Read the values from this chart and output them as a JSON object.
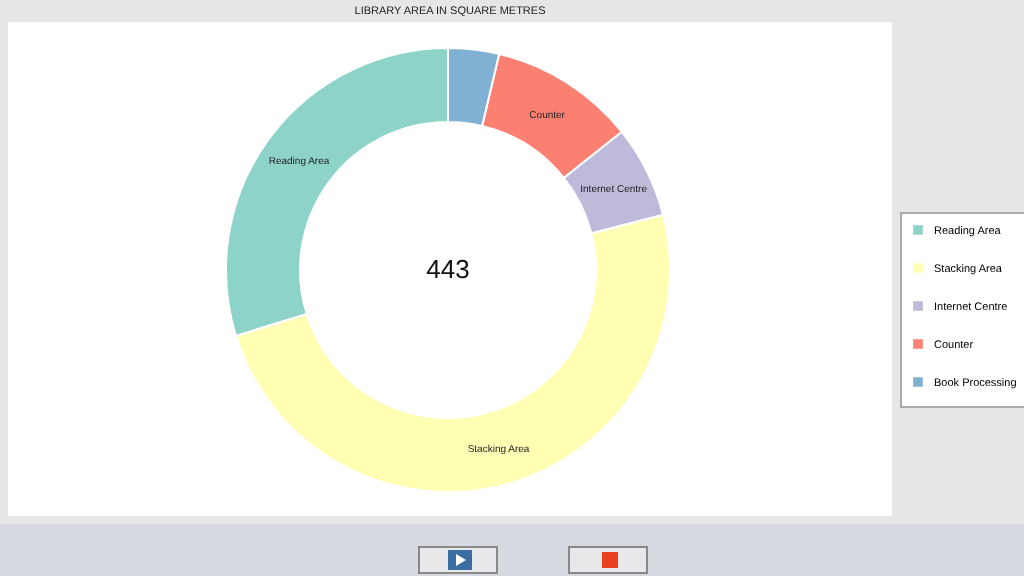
{
  "chart_data": {
    "type": "donut",
    "title": "LIBRARY AREA IN SQUARE METRES",
    "categories": [
      "Reading Area",
      "Stacking Area",
      "Internet Centre",
      "Counter",
      "Book Processing"
    ],
    "values": [
      29.8,
      49.2,
      6.7,
      10.6,
      3.7
    ],
    "colors": [
      "#8dd3c7",
      "#ffffb3",
      "#bebada",
      "#fb8072",
      "#80b1d3"
    ],
    "data_labels": false,
    "legend": "right",
    "annotations": [
      "443"
    ]
  }
}
